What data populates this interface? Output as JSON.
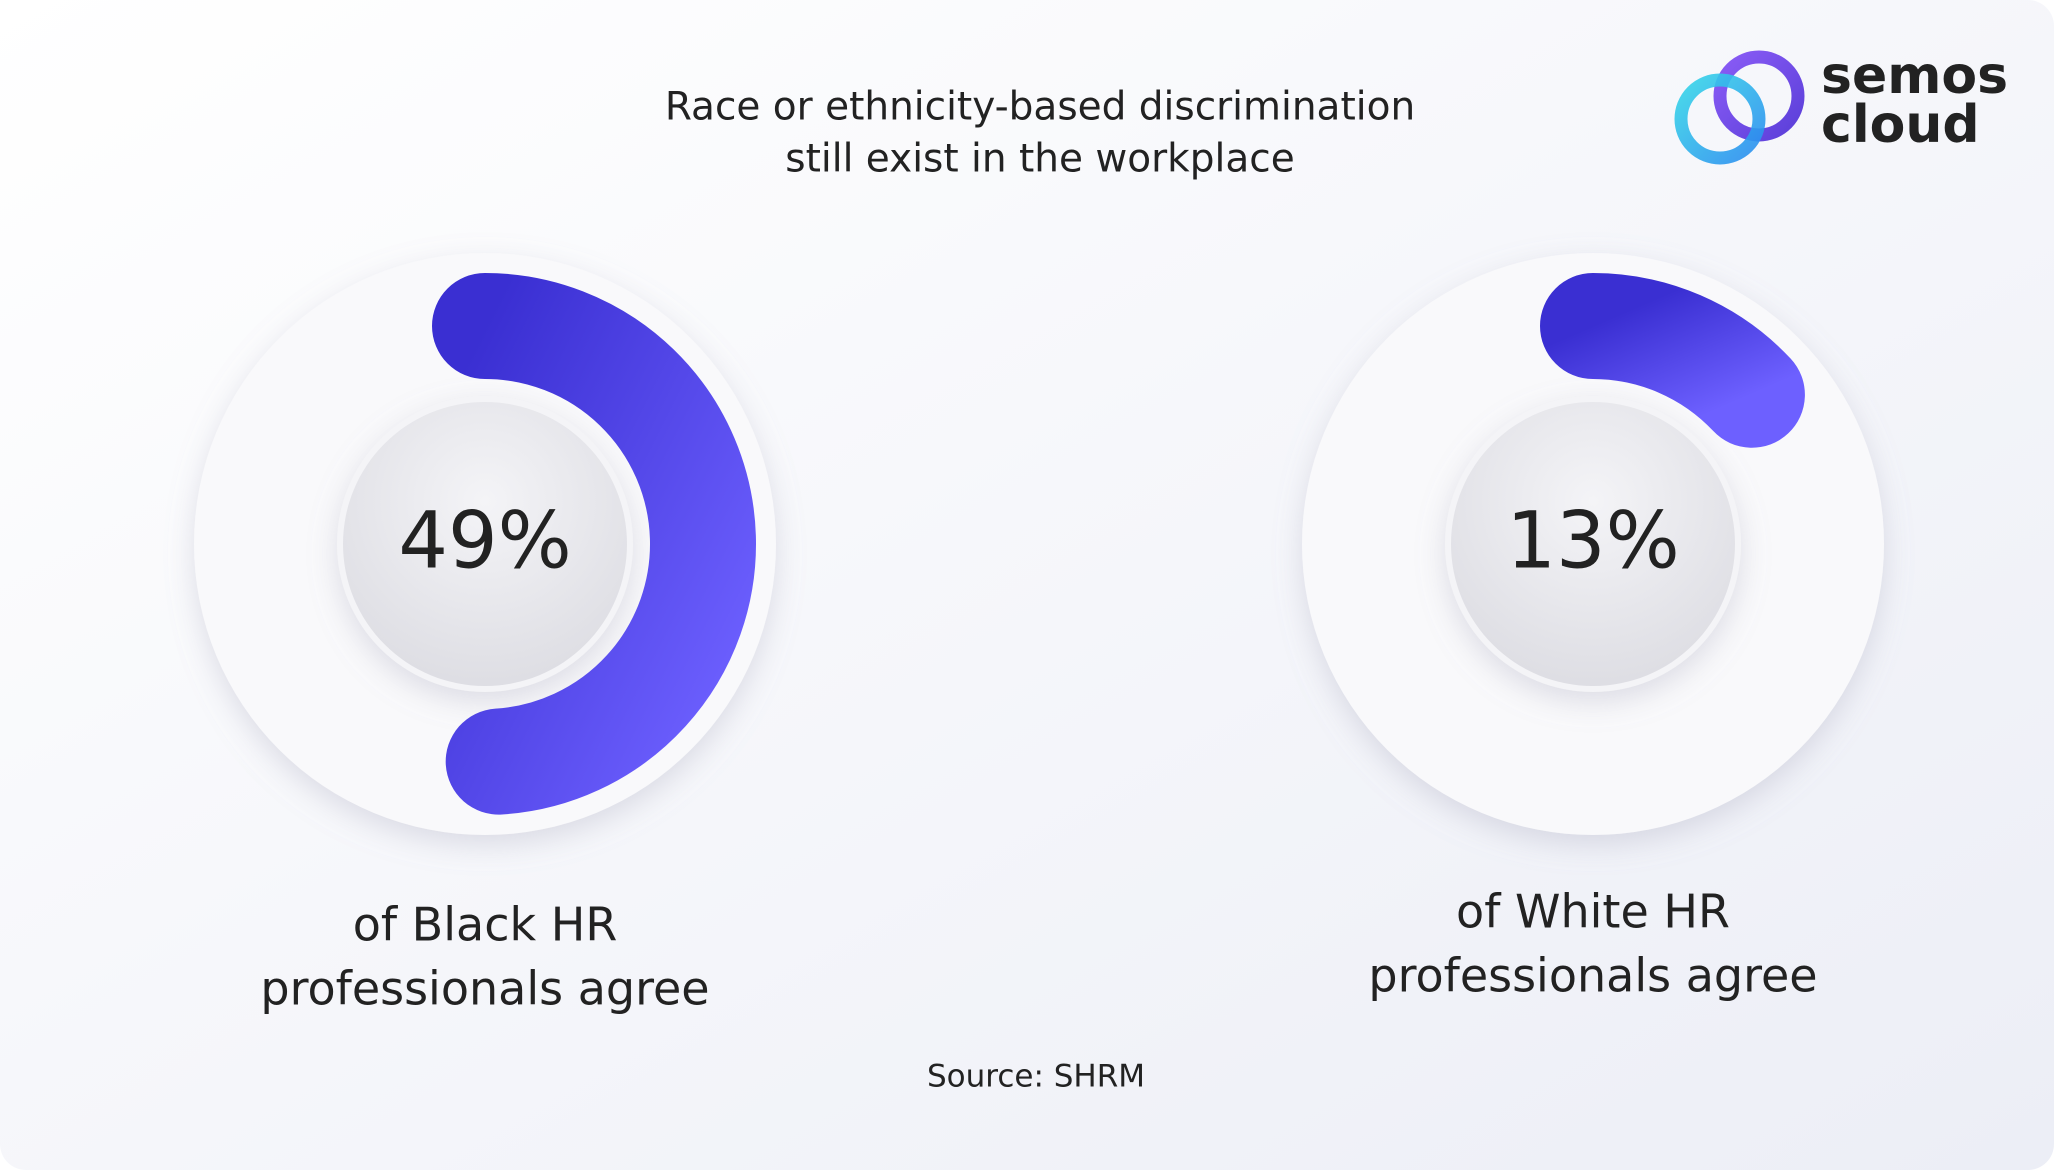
{
  "title": [
    "Race or ethnicity-based discrimination",
    "still exist in the workplace"
  ],
  "logo": [
    "semos",
    "cloud"
  ],
  "source": "Source: SHRM",
  "chart_data": [
    {
      "type": "donut",
      "values": [
        49
      ],
      "value_labels": [
        "49%"
      ],
      "ylim": [
        0,
        100
      ],
      "caption": [
        "of Black HR",
        "professionals agree"
      ]
    },
    {
      "type": "donut",
      "values": [
        13
      ],
      "value_labels": [
        "13%"
      ],
      "ylim": [
        0,
        100
      ],
      "caption": [
        "of White HR",
        "professionals agree"
      ]
    }
  ]
}
